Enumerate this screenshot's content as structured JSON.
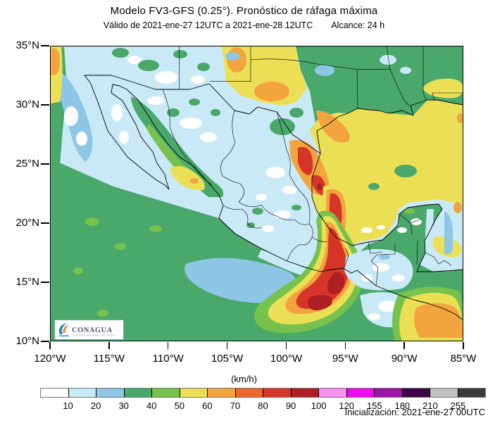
{
  "header": {
    "title": "Modelo FV3-GFS (0.25°). Pronóstico de ráfaga máxima",
    "valid": "Válido de 2021-ene-27 12UTC a 2021-ene-28 12UTC",
    "alcance": "Alcance: 24 h"
  },
  "axes": {
    "lat_ticks": [
      "35°N",
      "30°N",
      "25°N",
      "20°N",
      "15°N",
      "10°N"
    ],
    "lon_ticks": [
      "120°W",
      "115°W",
      "110°W",
      "105°W",
      "100°W",
      "95°W",
      "90°W",
      "85°W"
    ]
  },
  "legend": {
    "units": "(km/h)",
    "boundary_values": [
      "10",
      "20",
      "30",
      "40",
      "50",
      "60",
      "70",
      "80",
      "90",
      "100",
      "120",
      "155",
      "180",
      "210",
      "255"
    ],
    "colors": [
      "#ffffff",
      "#c9e9f7",
      "#8ec6e6",
      "#4aa86b",
      "#76c24d",
      "#ebe055",
      "#f3a43f",
      "#ec682c",
      "#d63529",
      "#ae1f23",
      "#fb8ff1",
      "#ee0aec",
      "#9f12a6",
      "#3f0647",
      "#bfbfbf",
      "#3b3b3b"
    ]
  },
  "footer": {
    "initialization": "Inicialización: 2021-ene-27 00UTC"
  },
  "logo": {
    "name": "CONAGUA",
    "tagline": "COMISIÓN NACIONAL DEL AGUA",
    "text_color": "#4d5a64",
    "swoosh_blue": "#2280b8",
    "swoosh_orange": "#df8f3f"
  }
}
